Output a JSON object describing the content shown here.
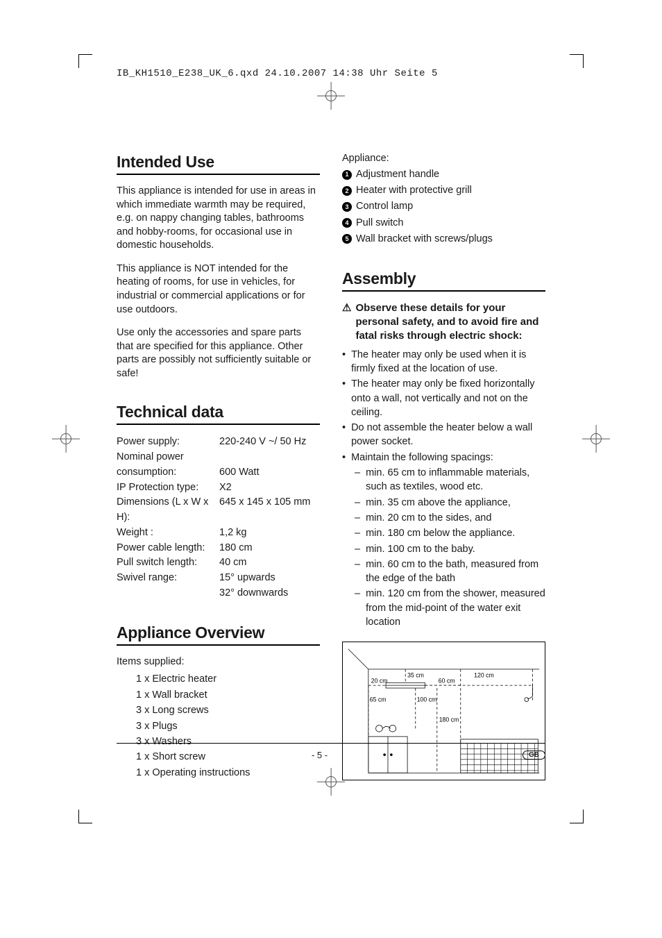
{
  "header": {
    "text": "IB_KH1510_E238_UK_6.qxd  24.10.2007  14:38 Uhr  Seite 5"
  },
  "left": {
    "intended_use": {
      "title": "Intended Use",
      "p1": "This appliance is intended for use in areas in which immediate warmth may be required, e.g. on nappy changing tables, bathrooms and hobby-rooms, for occasional use in domestic households.",
      "p2": "This appliance is NOT intended for the heating of rooms, for use in vehicles, for industrial or commercial applications or for use outdoors.",
      "p3": "Use only the accessories and spare parts that are specified for this appliance. Other parts are possibly not sufficiently suitable or safe!"
    },
    "technical": {
      "title": "Technical data",
      "rows": [
        {
          "label": "Power supply:",
          "value": "220-240 V ~/ 50 Hz"
        },
        {
          "label": "Nominal power",
          "value": ""
        },
        {
          "label": "consumption:",
          "value": "600 Watt"
        },
        {
          "label": "IP Protection type:",
          "value": "X2"
        },
        {
          "label": "Dimensions (L x W x H):",
          "value": "645 x 145 x 105 mm"
        },
        {
          "label": "Weight :",
          "value": "1,2 kg"
        },
        {
          "label": "Power cable length:",
          "value": "180 cm"
        },
        {
          "label": "Pull switch length:",
          "value": "40 cm"
        },
        {
          "label": "Swivel range:",
          "value": "15° upwards"
        },
        {
          "label": "",
          "value": "32° downwards"
        }
      ]
    },
    "overview": {
      "title": "Appliance Overview",
      "supplied_label": "Items supplied:",
      "supplied": [
        "1 x Electric heater",
        "1 x Wall bracket",
        "3 x Long screws",
        "3 x Plugs",
        "3 x Washers",
        "1 x Short screw",
        "1 x Operating instructions"
      ]
    }
  },
  "right": {
    "appliance_label": "Appliance:",
    "appliance_parts": [
      {
        "n": "1",
        "label": "Adjustment handle"
      },
      {
        "n": "2",
        "label": "Heater with protective grill"
      },
      {
        "n": "3",
        "label": "Control lamp"
      },
      {
        "n": "4",
        "label": "Pull switch"
      },
      {
        "n": "5",
        "label": "Wall bracket with screws/plugs"
      }
    ],
    "assembly": {
      "title": "Assembly",
      "warn": "Observe these details for your personal safety, and to avoid fire and fatal risks through electric shock:",
      "bullets": [
        "The heater may only be used when it is firmly fixed at the location of use.",
        "The heater may only be fixed horizontally onto a wall, not vertically and not on the ceiling.",
        "Do not assemble the heater below a wall power socket.",
        "Maintain the following spacings:"
      ],
      "spacings": [
        "min. 65 cm to inflammable materials, such as textiles, wood etc.",
        "min. 35 cm above the appliance,",
        "min. 20 cm to the sides, and",
        "min. 180 cm below the appliance.",
        "min. 100 cm to the baby.",
        "min. 60 cm to the bath, measured from the edge of the bath",
        "min. 120 cm from the shower, measured from the mid-point of the water exit location"
      ]
    },
    "diagram": {
      "labels": {
        "d35": "35 cm",
        "d120": "120 cm",
        "d20": "20 cm",
        "d60": "60 cm",
        "d65": "65 cm",
        "d100": "100 cm",
        "d180": "180 cm"
      },
      "stroke": "#000000",
      "text_color": "#000000",
      "font_size": 9,
      "dash": "4,3"
    }
  },
  "footer": {
    "page": "- 5 -",
    "badge": "GB"
  }
}
